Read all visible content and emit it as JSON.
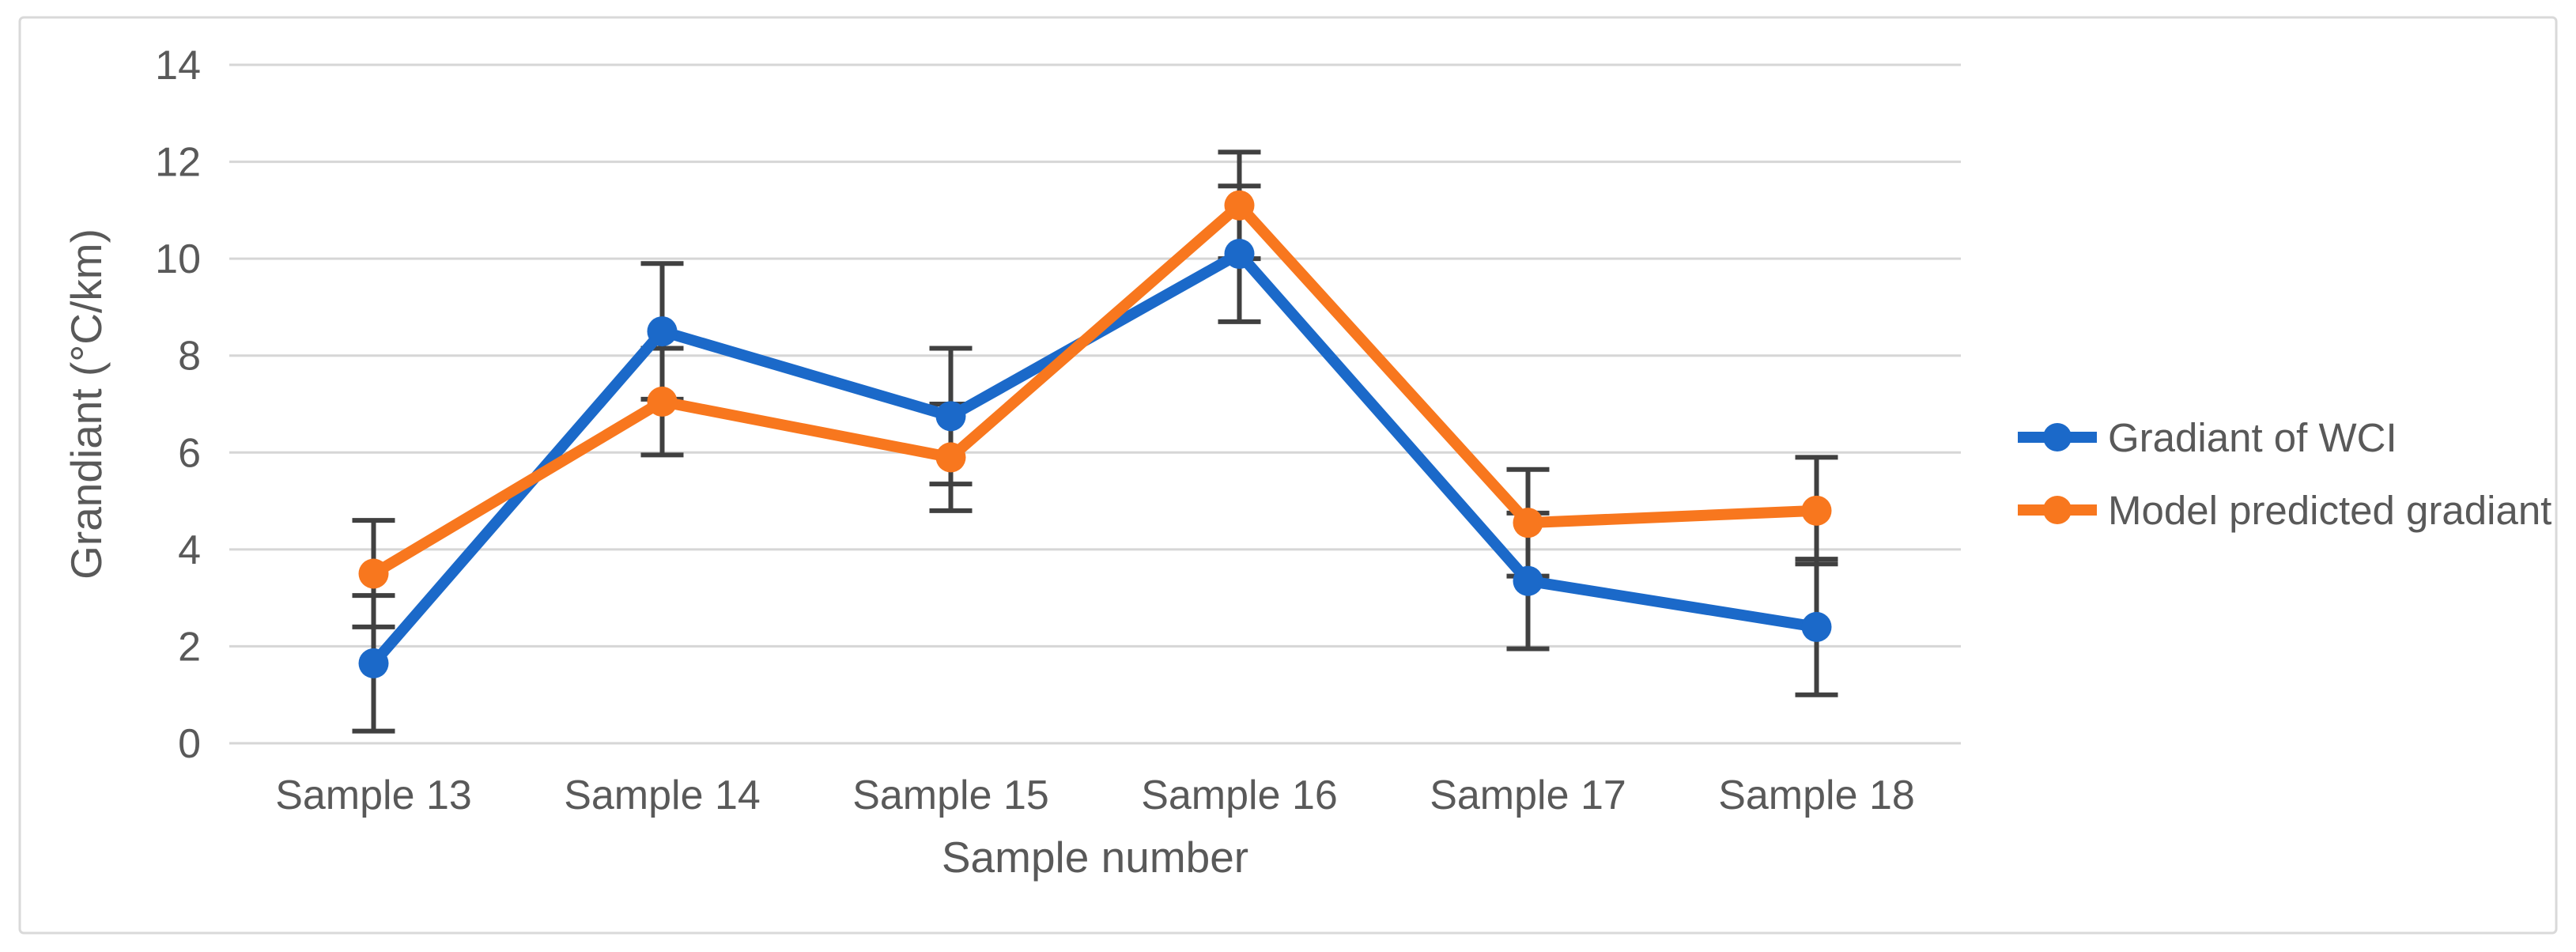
{
  "styles": {
    "background": "#FFFFFF",
    "text_color": "#595959",
    "gridline_color": "#D6D6D6",
    "border_color": "#D9D9D9",
    "errorbar_color": "#404040"
  },
  "chart_data": {
    "type": "line",
    "title": "",
    "categories": [
      "Sample 13",
      "Sample 14",
      "Sample 15",
      "Sample 16",
      "Sample 17",
      "Sample 18"
    ],
    "series": [
      {
        "name": "Gradiant of WCI",
        "color": "#1B69C9",
        "marker": "circle",
        "values": [
          1.65,
          8.5,
          6.75,
          10.1,
          3.35,
          2.4
        ],
        "error_bar": 1.4
      },
      {
        "name": "Model predicted gradiant",
        "color": "#F8771E",
        "marker": "circle",
        "values": [
          3.5,
          7.05,
          5.9,
          11.1,
          4.55,
          4.8
        ],
        "error_bar": 1.1
      }
    ],
    "xlabel": "Sample number",
    "ylabel": "Grandiant (°C/km)",
    "ylim": [
      0,
      14
    ],
    "ytick_step": 2,
    "ytick_labels": [
      "0",
      "2",
      "4",
      "6",
      "8",
      "10",
      "12",
      "14"
    ],
    "grid": "horizontal",
    "legend_position": "right-middle"
  }
}
